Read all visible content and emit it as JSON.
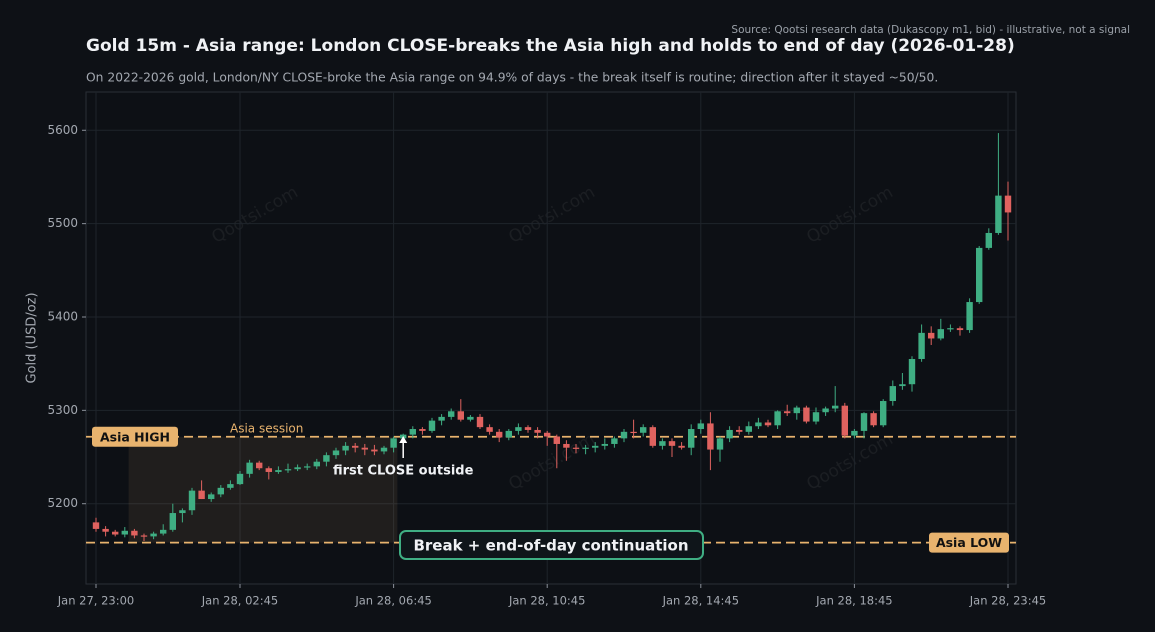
{
  "chart_data": {
    "type": "candlestick",
    "title": "Gold 15m - Asia range: London CLOSE-breaks the Asia high and holds to end of day (2026-01-28)",
    "subtitle": "On 2022-2026 gold, London/NY CLOSE-broke the Asia range on 94.9% of days - the break itself is routine; direction after it stayed ~50/50.",
    "source": "Source: Qootsi research data (Dukascopy m1, bid) - illustrative, not a signal",
    "y_label": "Gold (USD/oz)",
    "watermark": "Qootsi.com",
    "categories": [
      "Jan 27, 23:00",
      null,
      null,
      null,
      null,
      null,
      null,
      null,
      null,
      null,
      null,
      null,
      null,
      null,
      null,
      "Jan 28, 02:45",
      null,
      null,
      null,
      null,
      null,
      null,
      null,
      null,
      null,
      null,
      null,
      null,
      null,
      null,
      null,
      "Jan 28, 06:45",
      null,
      null,
      null,
      null,
      null,
      null,
      null,
      null,
      null,
      null,
      null,
      null,
      null,
      null,
      null,
      "Jan 28, 10:45",
      null,
      null,
      null,
      null,
      null,
      null,
      null,
      null,
      null,
      null,
      null,
      null,
      null,
      null,
      null,
      "Jan 28, 14:45",
      null,
      null,
      null,
      null,
      null,
      null,
      null,
      null,
      null,
      null,
      null,
      null,
      null,
      null,
      null,
      "Jan 28, 18:45",
      null,
      null,
      null,
      null,
      null,
      null,
      null,
      null,
      null,
      null,
      null,
      null,
      null,
      null,
      null,
      "Jan 28, 23:45"
    ],
    "open": [
      5180,
      5173,
      5170,
      5167,
      5171,
      5166,
      5165,
      5168,
      5172,
      5190,
      5193,
      5214,
      5205,
      5210,
      5217,
      5221,
      5232,
      5244,
      5238,
      5234,
      5236,
      5237,
      5239,
      5240,
      5245,
      5252,
      5257,
      5262,
      5260,
      5258,
      5256,
      5260,
      5270,
      5274,
      5280,
      5278,
      5289,
      5293,
      5299,
      5290,
      5293,
      5282,
      5277,
      5271,
      5278,
      5282,
      5279,
      5276,
      5272,
      5264,
      5260,
      5259,
      5260,
      5262,
      5264,
      5270,
      5277,
      5276,
      5282,
      5262,
      5267,
      5262,
      5260,
      5280,
      5286,
      5258,
      5270,
      5279,
      5277,
      5283,
      5287,
      5284,
      5299,
      5297,
      5303,
      5288,
      5298,
      5302,
      5305,
      5273,
      5278,
      5297,
      5284,
      5310,
      5326,
      5328,
      5355,
      5383,
      5377,
      5387,
      5388,
      5386,
      5416,
      5474,
      5490,
      5530
    ],
    "high": [
      5185,
      5176,
      5172,
      5175,
      5173,
      5168,
      5170,
      5178,
      5200,
      5195,
      5217,
      5225,
      5212,
      5220,
      5225,
      5235,
      5247,
      5246,
      5240,
      5240,
      5243,
      5242,
      5243,
      5248,
      5255,
      5260,
      5266,
      5265,
      5264,
      5263,
      5262,
      5272,
      5275,
      5283,
      5282,
      5292,
      5296,
      5302,
      5312,
      5295,
      5296,
      5285,
      5280,
      5280,
      5286,
      5284,
      5282,
      5278,
      5274,
      5268,
      5264,
      5263,
      5266,
      5270,
      5272,
      5280,
      5290,
      5285,
      5284,
      5270,
      5270,
      5266,
      5285,
      5290,
      5298,
      5272,
      5283,
      5283,
      5288,
      5292,
      5290,
      5300,
      5306,
      5305,
      5305,
      5303,
      5304,
      5326,
      5308,
      5280,
      5298,
      5299,
      5312,
      5332,
      5340,
      5358,
      5392,
      5390,
      5398,
      5392,
      5390,
      5420,
      5476,
      5495,
      5597,
      5545
    ],
    "low": [
      5170,
      5165,
      5165,
      5164,
      5163,
      5160,
      5162,
      5166,
      5170,
      5180,
      5188,
      5205,
      5202,
      5207,
      5215,
      5220,
      5228,
      5236,
      5226,
      5232,
      5233,
      5235,
      5236,
      5237,
      5240,
      5248,
      5252,
      5255,
      5252,
      5252,
      5253,
      5255,
      5262,
      5270,
      5274,
      5276,
      5284,
      5290,
      5288,
      5288,
      5280,
      5274,
      5266,
      5268,
      5274,
      5276,
      5270,
      5262,
      5238,
      5246,
      5254,
      5253,
      5255,
      5258,
      5260,
      5266,
      5270,
      5272,
      5260,
      5258,
      5250,
      5258,
      5252,
      5275,
      5236,
      5245,
      5266,
      5274,
      5274,
      5280,
      5282,
      5280,
      5294,
      5290,
      5286,
      5285,
      5294,
      5298,
      5270,
      5270,
      5270,
      5282,
      5282,
      5305,
      5322,
      5320,
      5352,
      5370,
      5375,
      5384,
      5380,
      5383,
      5414,
      5472,
      5488,
      5482
    ],
    "close": [
      5173,
      5170,
      5167,
      5171,
      5166,
      5165,
      5168,
      5172,
      5190,
      5193,
      5214,
      5205,
      5210,
      5217,
      5221,
      5232,
      5244,
      5238,
      5234,
      5236,
      5237,
      5239,
      5240,
      5245,
      5252,
      5257,
      5262,
      5260,
      5258,
      5256,
      5260,
      5270,
      5274,
      5280,
      5278,
      5289,
      5293,
      5299,
      5290,
      5293,
      5282,
      5277,
      5271,
      5278,
      5282,
      5279,
      5276,
      5272,
      5264,
      5260,
      5259,
      5260,
      5262,
      5264,
      5270,
      5277,
      5276,
      5282,
      5262,
      5267,
      5262,
      5260,
      5280,
      5286,
      5258,
      5270,
      5279,
      5277,
      5283,
      5287,
      5284,
      5299,
      5297,
      5303,
      5288,
      5298,
      5302,
      5305,
      5273,
      5278,
      5297,
      5284,
      5310,
      5326,
      5328,
      5355,
      5383,
      5377,
      5387,
      5388,
      5386,
      5416,
      5474,
      5490,
      5530,
      5512
    ],
    "up_color": "#3fae83",
    "down_color": "#e0625f",
    "ylim": [
      5114,
      5641
    ],
    "yticks": [
      5200,
      5300,
      5400,
      5500,
      5600
    ],
    "grid": true,
    "asia_high": {
      "label": "Asia HIGH",
      "value": 5271.7
    },
    "asia_low": {
      "label": "Asia LOW",
      "value": 5158.3
    },
    "level_color": "#e8b36e",
    "asia_session": {
      "label": "Asia session",
      "start": 4,
      "end": 31
    },
    "first_close_outside": {
      "label": "first CLOSE outside",
      "index": 32
    },
    "callout": "Break + end-of-day continuation"
  }
}
